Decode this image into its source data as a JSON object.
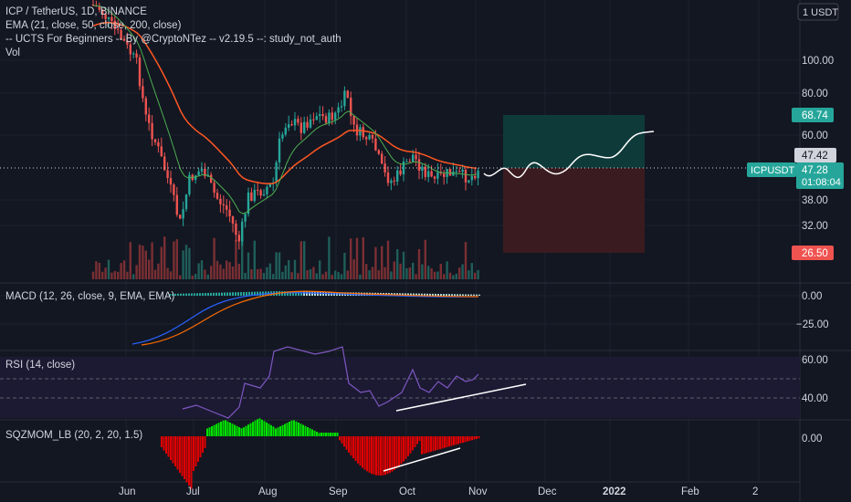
{
  "header": {
    "symbol_line": "ICP / TetherUS, 1D, BINANCE",
    "ema_line": "EMA (21, close, 50, close, 200, close)",
    "ucts_line": "-- UCTS For Beginners -- By @CryptoNTez -- v2.19.5 --: study_not_auth",
    "vol_line": "Vol"
  },
  "currency_badge": "1 USDT",
  "panes": {
    "macd_label": "MACD (12, 26, close, 9, EMA, EMA)",
    "rsi_label": "RSI (14, close)",
    "sqz_label": "SQZMOM_LB (20, 2, 20, 1.5)"
  },
  "price_badges": {
    "target": "68.74",
    "ema_value": "47.42",
    "ticker": "ICPUSDT",
    "current": "47.28",
    "countdown": "01:08:04",
    "stop": "26.50"
  },
  "colors": {
    "background": "#131722",
    "up": "#26a69a",
    "down": "#ef5350",
    "ema21": "#4caf50",
    "ema50": "#ff5722",
    "rsi": "#7e57c2",
    "macd": "#2962ff",
    "signal": "#ff6d00",
    "sqz_green": "#00e000",
    "sqz_red": "#e00000"
  },
  "chart_data": [
    {
      "type": "candlestick",
      "title": "ICP / TetherUS, 1D, BINANCE",
      "y_scale": "log",
      "y_ticks": [
        "100.00",
        "80.00",
        "60.00",
        "47.42",
        "38.00",
        "32.00",
        "26.50"
      ],
      "x_ticks": [
        "Jun",
        "Jul",
        "Aug",
        "Sep",
        "Oct",
        "Nov",
        "Dec",
        "2022",
        "Feb",
        "2"
      ],
      "series": [
        {
          "name": "EMA 21",
          "note": "line"
        },
        {
          "name": "EMA 50",
          "note": "line"
        }
      ],
      "trade_box": {
        "entry": 47.28,
        "target": 68.74,
        "stop": 26.5
      }
    },
    {
      "type": "line",
      "title": "MACD (12, 26, close, 9, EMA, EMA)",
      "y_ticks": [
        "0.00",
        "-25.00"
      ]
    },
    {
      "type": "line",
      "title": "RSI (14, close)",
      "y_ticks": [
        "60.00",
        "40.00"
      ]
    },
    {
      "type": "bar",
      "title": "SQZMOM_LB (20, 2, 20, 1.5)",
      "y_ticks": [
        "0.00"
      ]
    }
  ]
}
